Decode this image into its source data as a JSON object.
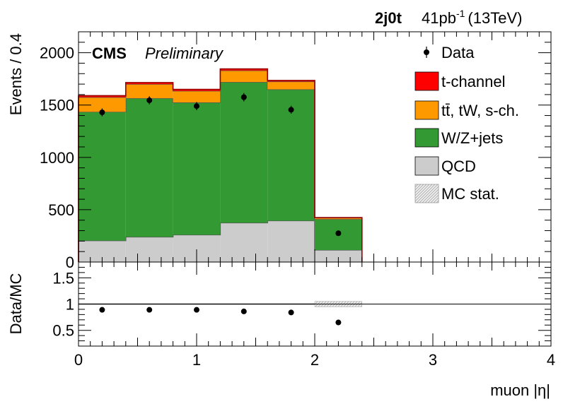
{
  "chart_data": [
    {
      "type": "bar",
      "stacked": true,
      "header_left": "2j0t",
      "header_lumi": "41pb",
      "header_lumi_sup": "-1",
      "header_energy": "(13TeV)",
      "experiment": "CMS",
      "status": "Preliminary",
      "ylabel": "Events / 0.4",
      "xlim": [
        0,
        4
      ],
      "ylim": [
        0,
        2200
      ],
      "yticks": [
        0,
        500,
        1000,
        1500,
        2000
      ],
      "bin_edges": [
        0,
        0.4,
        0.8,
        1.2,
        1.6,
        2.0,
        2.4
      ],
      "series": [
        {
          "name": "QCD",
          "color": "#cccccc",
          "values": [
            205,
            240,
            260,
            375,
            395,
            115
          ]
        },
        {
          "name": "W/Z+jets",
          "color": "#339933",
          "values": [
            1230,
            1325,
            1265,
            1345,
            1255,
            295
          ]
        },
        {
          "name": "tt̄, tW, s-ch.",
          "color": "#ff9900",
          "values": [
            140,
            135,
            110,
            110,
            75,
            12
          ]
        },
        {
          "name": "t-channel",
          "color": "#ff0000",
          "values": [
            15,
            15,
            15,
            15,
            10,
            3
          ]
        }
      ],
      "data_points": {
        "name": "Data",
        "x": [
          0.2,
          0.6,
          1.0,
          1.4,
          1.8,
          2.2
        ],
        "y": [
          1430,
          1545,
          1490,
          1575,
          1455,
          275
        ],
        "yerr": [
          38,
          39,
          39,
          40,
          38,
          17
        ]
      },
      "mc_stat_label": "MC stat.",
      "legend_position": "top-right",
      "legend": [
        "Data",
        "t-channel",
        "tt̄, tW, s-ch.",
        "W/Z+jets",
        "QCD",
        "MC stat."
      ]
    },
    {
      "type": "scatter",
      "xlabel": "muon |η|",
      "ylabel": "Data/MC",
      "xlim": [
        0,
        4
      ],
      "ylim": [
        0.2,
        1.8
      ],
      "yticks": [
        0.5,
        1,
        1.5
      ],
      "ytick_labels": [
        "0.5",
        "1",
        "1.5"
      ],
      "xticks": [
        0,
        1,
        2,
        3,
        4
      ],
      "xtick_labels": [
        "0",
        "1",
        "2",
        "3",
        "4"
      ],
      "reference_line": 1,
      "x": [
        0.2,
        0.6,
        1.0,
        1.4,
        1.8,
        2.2
      ],
      "y": [
        0.89,
        0.89,
        0.89,
        0.86,
        0.84,
        0.65
      ],
      "mc_stat_band": [
        {
          "x": [
            0,
            2.0
          ],
          "half_width": 0.012
        },
        {
          "x": [
            2.0,
            2.4
          ],
          "half_width": 0.05
        }
      ]
    }
  ]
}
